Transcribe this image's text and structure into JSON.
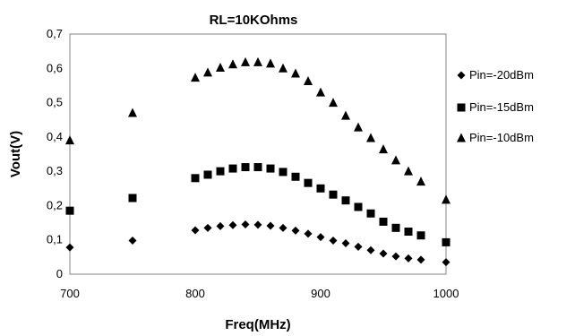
{
  "chart_data": {
    "type": "scatter",
    "title": "RL=10KOhms",
    "xlabel": "Freq(MHz)",
    "ylabel": "Vout(V)",
    "xlim": [
      700,
      1000
    ],
    "ylim": [
      0,
      0.7
    ],
    "xticks": [
      700,
      800,
      900,
      1000
    ],
    "xtick_labels": [
      "700",
      "800",
      "900",
      "1000"
    ],
    "yticks": [
      0,
      0.1,
      0.2,
      0.3,
      0.4,
      0.5,
      0.6,
      0.7
    ],
    "ytick_labels": [
      "0",
      "0,1",
      "0,2",
      "0,3",
      "0,4",
      "0,5",
      "0,6",
      "0,7"
    ],
    "grid": false,
    "legend_position": "right",
    "series": [
      {
        "name": "Pin=-20dBm",
        "marker": "diamond",
        "color": "#000000",
        "x": [
          700,
          750,
          800,
          810,
          820,
          830,
          840,
          850,
          860,
          870,
          880,
          890,
          900,
          910,
          920,
          930,
          940,
          950,
          960,
          970,
          980,
          1000
        ],
        "y": [
          0.078,
          0.098,
          0.128,
          0.135,
          0.14,
          0.143,
          0.145,
          0.144,
          0.141,
          0.135,
          0.127,
          0.118,
          0.108,
          0.098,
          0.09,
          0.08,
          0.07,
          0.06,
          0.052,
          0.046,
          0.042,
          0.035
        ]
      },
      {
        "name": "Pin=-15dBm",
        "marker": "square",
        "color": "#000000",
        "x": [
          700,
          750,
          800,
          810,
          820,
          830,
          840,
          850,
          860,
          870,
          880,
          890,
          900,
          910,
          920,
          930,
          940,
          950,
          960,
          970,
          980,
          1000
        ],
        "y": [
          0.185,
          0.222,
          0.28,
          0.29,
          0.3,
          0.308,
          0.312,
          0.312,
          0.308,
          0.298,
          0.284,
          0.266,
          0.25,
          0.232,
          0.215,
          0.196,
          0.177,
          0.153,
          0.135,
          0.124,
          0.113,
          0.093
        ]
      },
      {
        "name": "Pin=-10dBm",
        "marker": "triangle",
        "color": "#000000",
        "x": [
          700,
          750,
          800,
          810,
          820,
          830,
          840,
          850,
          860,
          870,
          880,
          890,
          900,
          910,
          920,
          930,
          940,
          950,
          960,
          970,
          980,
          1000
        ],
        "y": [
          0.39,
          0.47,
          0.573,
          0.588,
          0.602,
          0.612,
          0.618,
          0.618,
          0.614,
          0.6,
          0.585,
          0.563,
          0.53,
          0.5,
          0.462,
          0.428,
          0.397,
          0.364,
          0.332,
          0.3,
          0.27,
          0.217
        ]
      }
    ]
  }
}
